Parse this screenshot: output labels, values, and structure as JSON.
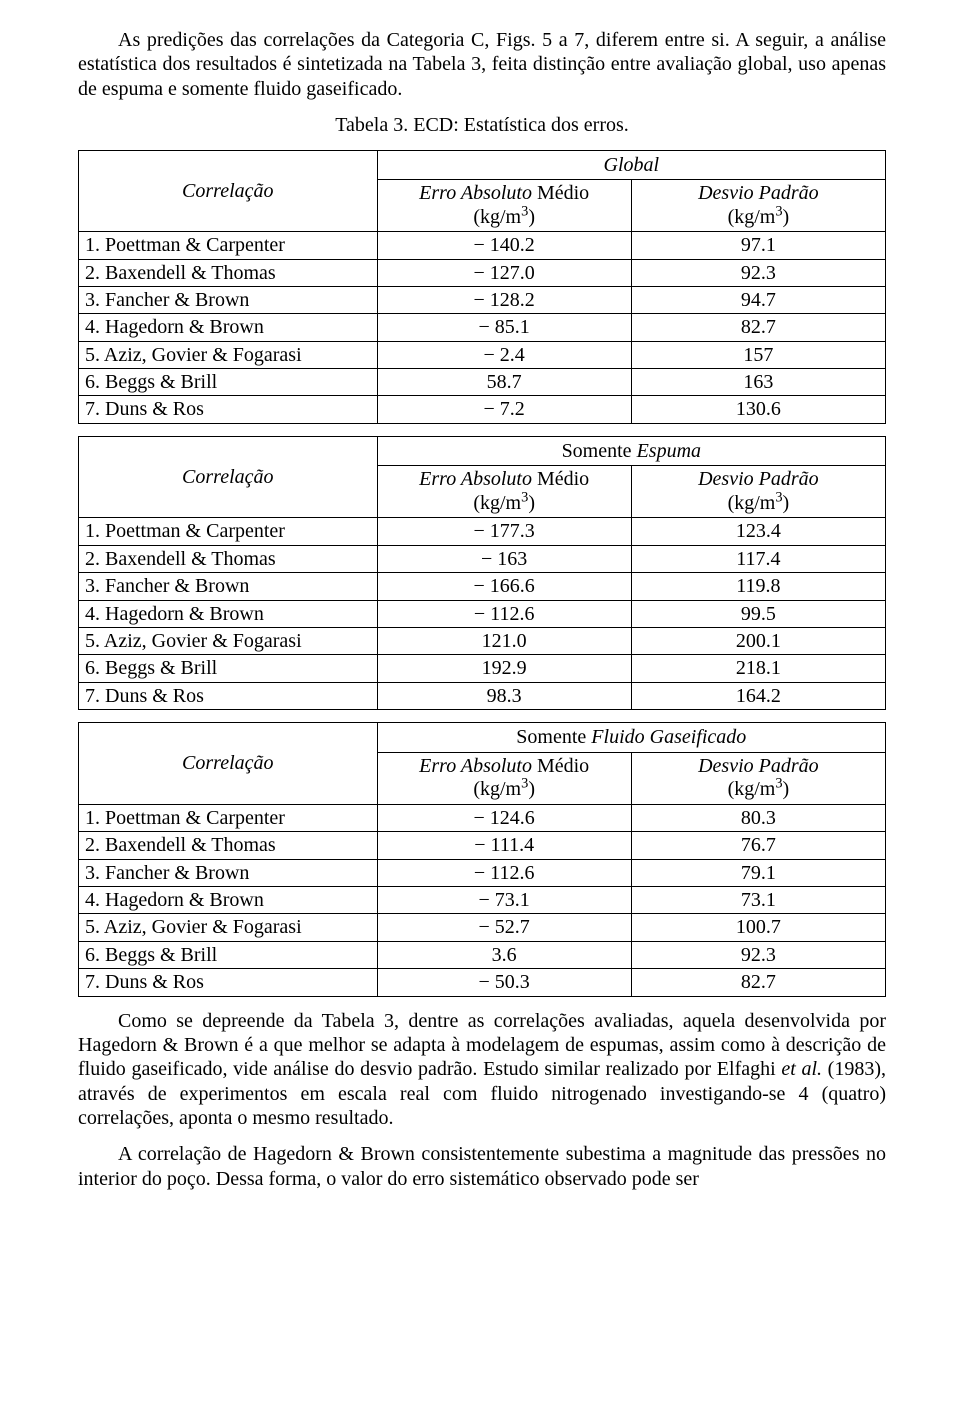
{
  "intro": "As predições das correlações da Categoria C, Figs. 5 a 7, diferem entre si. A seguir, a análise estatística dos resultados é sintetizada na Tabela 3, feita distinção entre avaliação global, uso apenas de espuma e somente fluido gaseificado.",
  "caption": "Tabela 3. ECD: Estatística dos erros.",
  "headers": {
    "correlacao": "Correlação",
    "col1_line1": "Erro Absoluto",
    "col1_line1_suffix": " Médio",
    "col2_line1": "Desvio Padrão",
    "unit_html": "(kg/m³)"
  },
  "sections": [
    {
      "title_prefix": "",
      "title_italic": "Global",
      "rows": [
        {
          "label": "1. Poettman & Carpenter",
          "v1": "− 140.2",
          "v2": "97.1"
        },
        {
          "label": "2. Baxendell & Thomas",
          "v1": "− 127.0",
          "v2": "92.3"
        },
        {
          "label": "3. Fancher & Brown",
          "v1": "− 128.2",
          "v2": "94.7"
        },
        {
          "label": "4. Hagedorn & Brown",
          "v1": "− 85.1",
          "v2": "82.7"
        },
        {
          "label": "5. Aziz, Govier & Fogarasi",
          "v1": "− 2.4",
          "v2": "157"
        },
        {
          "label": "6. Beggs & Brill",
          "v1": "58.7",
          "v2": "163"
        },
        {
          "label": "7. Duns & Ros",
          "v1": "− 7.2",
          "v2": "130.6"
        }
      ]
    },
    {
      "title_prefix": "Somente ",
      "title_italic": "Espuma",
      "rows": [
        {
          "label": "1. Poettman & Carpenter",
          "v1": "− 177.3",
          "v2": "123.4"
        },
        {
          "label": "2. Baxendell & Thomas",
          "v1": "− 163",
          "v2": "117.4"
        },
        {
          "label": "3. Fancher & Brown",
          "v1": "− 166.6",
          "v2": "119.8"
        },
        {
          "label": "4. Hagedorn & Brown",
          "v1": "− 112.6",
          "v2": "99.5"
        },
        {
          "label": "5. Aziz, Govier & Fogarasi",
          "v1": "121.0",
          "v2": "200.1"
        },
        {
          "label": "6. Beggs & Brill",
          "v1": "192.9",
          "v2": "218.1"
        },
        {
          "label": "7. Duns & Ros",
          "v1": "98.3",
          "v2": "164.2"
        }
      ]
    },
    {
      "title_prefix": "Somente ",
      "title_italic": "Fluido Gaseificado",
      "rows": [
        {
          "label": "1. Poettman & Carpenter",
          "v1": "− 124.6",
          "v2": "80.3"
        },
        {
          "label": "2. Baxendell & Thomas",
          "v1": "− 111.4",
          "v2": "76.7"
        },
        {
          "label": "3. Fancher & Brown",
          "v1": "− 112.6",
          "v2": "79.1"
        },
        {
          "label": "4. Hagedorn & Brown",
          "v1": "− 73.1",
          "v2": "73.1"
        },
        {
          "label": "5. Aziz, Govier & Fogarasi",
          "v1": "− 52.7",
          "v2": "100.7"
        },
        {
          "label": "6. Beggs & Brill",
          "v1": "3.6",
          "v2": "92.3"
        },
        {
          "label": "7. Duns & Ros",
          "v1": "− 50.3",
          "v2": "82.7"
        }
      ]
    }
  ],
  "outro1_pre": "Como se depreende da Tabela 3, dentre as correlações avaliadas, aquela desenvolvida por Hagedorn & Brown é a que melhor se adapta à modelagem de espumas, assim como à descrição de fluido gaseificado, vide análise do desvio padrão. Estudo similar realizado por Elfaghi ",
  "outro1_italic": "et al.",
  "outro1_post": " (1983), através de experimentos em escala real com fluido nitrogenado investigando-se 4 (quatro) correlações, aponta o mesmo resultado.",
  "outro2": "A correlação de Hagedorn & Brown consistentemente subestima a magnitude das pressões no interior do poço. Dessa forma, o valor do erro sistemático observado pode ser"
}
